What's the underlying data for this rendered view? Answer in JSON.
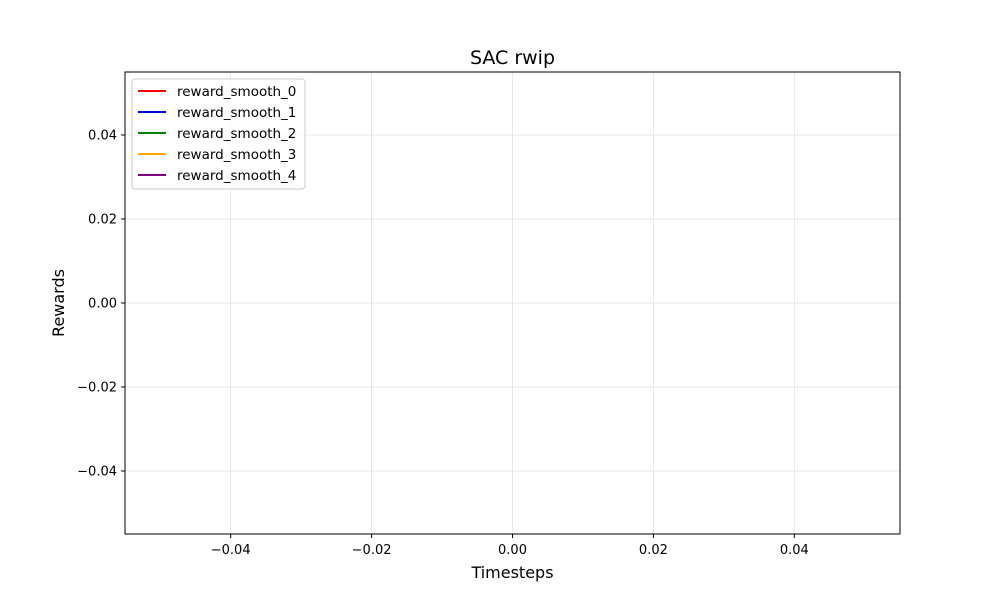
{
  "chart_data": {
    "type": "line",
    "title": "SAC rwip",
    "xlabel": "Timesteps",
    "ylabel": "Rewards",
    "xlim": [
      -0.055,
      0.055
    ],
    "ylim": [
      -0.055,
      0.055
    ],
    "xticks": [
      -0.04,
      -0.02,
      0.0,
      0.02,
      0.04
    ],
    "yticks": [
      -0.04,
      -0.02,
      0.0,
      0.02,
      0.04
    ],
    "xtick_labels": [
      "−0.04",
      "−0.02",
      "0.00",
      "0.02",
      "0.04"
    ],
    "ytick_labels": [
      "−0.04",
      "−0.02",
      "0.00",
      "0.02",
      "0.04"
    ],
    "grid": true,
    "legend_position": "top-left",
    "x": [],
    "series": [
      {
        "name": "reward_smooth_0",
        "color": "#ff0000",
        "values": []
      },
      {
        "name": "reward_smooth_1",
        "color": "#0000cc",
        "values": []
      },
      {
        "name": "reward_smooth_2",
        "color": "#008000",
        "values": []
      },
      {
        "name": "reward_smooth_3",
        "color": "#ffa500",
        "values": []
      },
      {
        "name": "reward_smooth_4",
        "color": "#800080",
        "values": []
      }
    ]
  }
}
